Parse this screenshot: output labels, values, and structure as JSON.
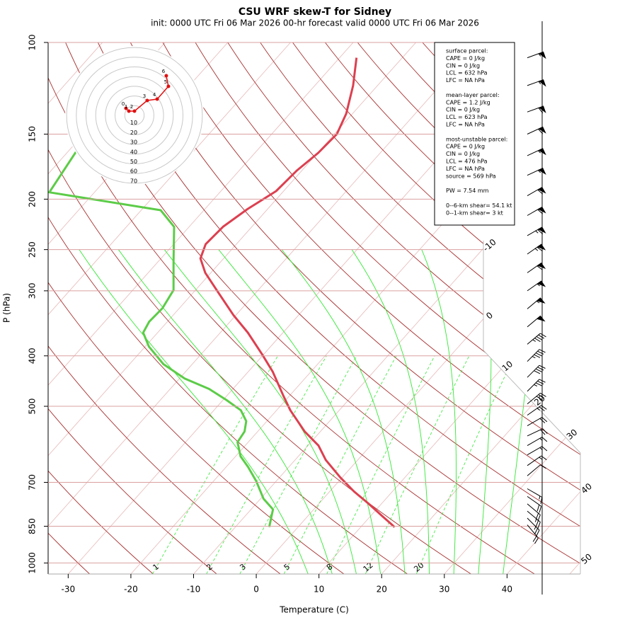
{
  "chart_data": {
    "type": "skewt",
    "title": "CSU WRF skew-T for Sidney",
    "subtitle": "init: 0000 UTC  Fri 06 Mar 2026     00-hr forecast valid 0000 UTC  Fri 06 Mar 2026",
    "xlabel": "Temperature (C)",
    "ylabel": "P (hPa)",
    "xlim": [
      -33.2,
      51.7
    ],
    "ylim": [
      1050,
      100
    ],
    "log_y": true,
    "xticks": [
      -30,
      -20,
      -10,
      0,
      10,
      20,
      30,
      40
    ],
    "yticks": [
      100,
      150,
      200,
      250,
      300,
      400,
      500,
      700,
      850,
      1000
    ],
    "isotherm_labels": [
      -10,
      0,
      10,
      20,
      30,
      40,
      50
    ],
    "mixing_ratio_labels": [
      1,
      2,
      3,
      5,
      8,
      12,
      20
    ],
    "series": [
      {
        "color": "#dc4050",
        "pressure": [
          853,
          814,
          769,
          729,
          685,
          634,
          595,
          559,
          509,
          478,
          429,
          397,
          361,
          334,
          304,
          277,
          260,
          244,
          226,
          209,
          193,
          176,
          163,
          150,
          137,
          121,
          107
        ],
        "values": [
          15.4,
          12.0,
          7.9,
          3.9,
          -0.3,
          -5.1,
          -8.3,
          -12.5,
          -17.8,
          -20.9,
          -26.1,
          -30.3,
          -35.6,
          -40.4,
          -45.7,
          -50.9,
          -53.7,
          -54.9,
          -54.6,
          -53.2,
          -51.2,
          -50.8,
          -49.9,
          -49.6,
          -51.0,
          -53.9,
          -57.3
        ]
      },
      {
        "color": "#5ccc48",
        "pressure": [
          853,
          789,
          753,
          696,
          654,
          624,
          586,
          559,
          534,
          509,
          486,
          463,
          442,
          415,
          384,
          361,
          344,
          324,
          299,
          264,
          226,
          210,
          194,
          160
        ],
        "values": [
          -4.6,
          -6.5,
          -9.5,
          -13.2,
          -16.5,
          -19.2,
          -21.7,
          -22.1,
          -23.3,
          -25.7,
          -29.5,
          -33.8,
          -39.2,
          -44.6,
          -49.4,
          -52.3,
          -52.9,
          -52.7,
          -53.5,
          -57.5,
          -62.4,
          -66.9,
          -87.2,
          -88.8
        ]
      }
    ],
    "wind": {
      "pressure": [
        107,
        121,
        136,
        150,
        165,
        180,
        197,
        215,
        235,
        255,
        277,
        300,
        325,
        352,
        380,
        410,
        440,
        468,
        495,
        520,
        545,
        570,
        595,
        620,
        650,
        680,
        720,
        745,
        770,
        795,
        820,
        845
      ],
      "speed": [
        55,
        55,
        60,
        60,
        55,
        55,
        60,
        60,
        65,
        65,
        60,
        55,
        55,
        50,
        45,
        45,
        40,
        35,
        30,
        25,
        20,
        20,
        15,
        15,
        15,
        10,
        15,
        20,
        20,
        25,
        25,
        20
      ],
      "direction": [
        70,
        70,
        70,
        65,
        65,
        65,
        60,
        60,
        60,
        55,
        55,
        55,
        50,
        50,
        50,
        45,
        45,
        45,
        50,
        55,
        60,
        65,
        60,
        60,
        55,
        50,
        120,
        125,
        130,
        130,
        135,
        140
      ]
    },
    "hodograph": {
      "ring_labels": [
        10,
        20,
        30,
        40,
        50,
        60,
        70
      ],
      "labels": [
        "0",
        "1",
        "2",
        "3",
        "4",
        "5",
        "6"
      ],
      "u": [
        -8.8,
        -5.8,
        0,
        13.1,
        23.4,
        35.0,
        32.8
      ],
      "v": [
        7.3,
        4.4,
        4.4,
        15.3,
        16.8,
        29.9,
        40.9
      ]
    },
    "info_box": [
      [
        "surface parcel:",
        "CAPE = 0 J/kg",
        "CIN = 0 J/kg",
        "LCL = 632 hPa",
        "LFC = NA hPa"
      ],
      [
        "mean-layer parcel:",
        "CAPE = 1.2 J/kg",
        "CIN = 0 J/kg",
        "LCL = 623 hPa",
        "LFC = NA hPa"
      ],
      [
        "most-unstable parcel:",
        "CAPE = 0 J/kg",
        "CIN = 0 J/kg",
        "LCL = 476 hPa",
        "LFC = NA hPa",
        "source = 569 hPa"
      ],
      [
        "PW =  7.54 mm"
      ],
      [
        "0--6-km shear= 54.1 kt",
        "0--1-km shear= 3 kt"
      ]
    ]
  }
}
